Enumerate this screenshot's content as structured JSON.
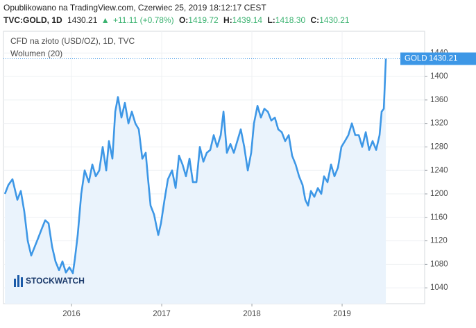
{
  "header": {
    "published": "Opublikowano na TradingView.com, Czerwiec 25, 2019 18:12:17 CEST",
    "symbol": "TVC:GOLD, 1D",
    "last": "1430.21",
    "arrow": "▲",
    "change": "+11.11 (+0.78%)",
    "open_label": "O:",
    "open": "1419.72",
    "high_label": "H:",
    "high": "1439.14",
    "low_label": "L:",
    "low": "1418.30",
    "close_label": "C:",
    "close": "1430.21"
  },
  "watermark": "STOCKWATCH",
  "chart_data": {
    "type": "area",
    "title": "CFD na złoto (USD/OZ), 1D, TVC",
    "subtitle": "Wolumen (20)",
    "color": "#3d97e6",
    "fill": "#eaf3fc",
    "x": [
      2015.262,
      2015.3,
      2015.346,
      2015.4,
      2015.438,
      2015.477,
      2015.515,
      2015.554,
      2015.592,
      2015.631,
      2015.669,
      2015.708,
      2015.746,
      2015.785,
      2015.823,
      2015.862,
      2015.9,
      2015.938,
      2015.977,
      2016.015,
      2016.038,
      2016.069,
      2016.108,
      2016.146,
      2016.192,
      2016.231,
      2016.269,
      2016.308,
      2016.346,
      2016.385,
      2016.415,
      2016.454,
      2016.485,
      2016.515,
      2016.554,
      2016.592,
      2016.631,
      2016.669,
      2016.708,
      2016.746,
      2016.785,
      2016.823,
      2016.846,
      2016.877,
      2016.915,
      2016.962,
      2016.992,
      2017.031,
      2017.069,
      2017.115,
      2017.154,
      2017.192,
      2017.231,
      2017.269,
      2017.308,
      2017.346,
      2017.385,
      2017.423,
      2017.462,
      2017.5,
      2017.538,
      2017.577,
      2017.615,
      2017.654,
      2017.685,
      2017.723,
      2017.762,
      2017.8,
      2017.838,
      2017.877,
      2017.915,
      2017.954,
      2017.992,
      2018.023,
      2018.062,
      2018.1,
      2018.138,
      2018.177,
      2018.215,
      2018.254,
      2018.292,
      2018.331,
      2018.369,
      2018.408,
      2018.446,
      2018.485,
      2018.523,
      2018.562,
      2018.592,
      2018.623,
      2018.654,
      2018.692,
      2018.731,
      2018.769,
      2018.8,
      2018.838,
      2018.877,
      2018.915,
      2018.954,
      2018.992,
      2019.031,
      2019.069,
      2019.108,
      2019.146,
      2019.185,
      2019.223,
      2019.262,
      2019.3,
      2019.338,
      2019.377,
      2019.415,
      2019.438,
      2019.462,
      2019.485
    ],
    "values": [
      1200,
      1215,
      1225,
      1190,
      1205,
      1170,
      1120,
      1095,
      1110,
      1125,
      1140,
      1155,
      1150,
      1110,
      1085,
      1070,
      1085,
      1066,
      1075,
      1065,
      1090,
      1130,
      1200,
      1240,
      1220,
      1250,
      1230,
      1240,
      1280,
      1240,
      1290,
      1260,
      1340,
      1365,
      1330,
      1355,
      1320,
      1340,
      1320,
      1310,
      1260,
      1270,
      1230,
      1180,
      1165,
      1130,
      1150,
      1190,
      1225,
      1240,
      1210,
      1265,
      1250,
      1230,
      1260,
      1220,
      1220,
      1280,
      1255,
      1270,
      1275,
      1300,
      1280,
      1300,
      1340,
      1270,
      1285,
      1270,
      1290,
      1310,
      1280,
      1240,
      1270,
      1320,
      1350,
      1330,
      1345,
      1340,
      1325,
      1330,
      1310,
      1305,
      1290,
      1300,
      1265,
      1250,
      1230,
      1215,
      1190,
      1180,
      1205,
      1195,
      1210,
      1200,
      1230,
      1220,
      1250,
      1230,
      1245,
      1280,
      1290,
      1300,
      1320,
      1300,
      1300,
      1280,
      1305,
      1275,
      1290,
      1275,
      1300,
      1340,
      1345,
      1430.21
    ],
    "xlim": [
      2015.246,
      2019.915
    ],
    "xticks": [
      2016,
      2017,
      2018,
      2019
    ],
    "ylim": [
      1013,
      1477
    ],
    "yticks": [
      1040,
      1080,
      1120,
      1160,
      1200,
      1240,
      1280,
      1320,
      1360,
      1400,
      1440
    ],
    "grid": true,
    "last_label": {
      "name": "GOLD",
      "value": 1430.21
    }
  }
}
